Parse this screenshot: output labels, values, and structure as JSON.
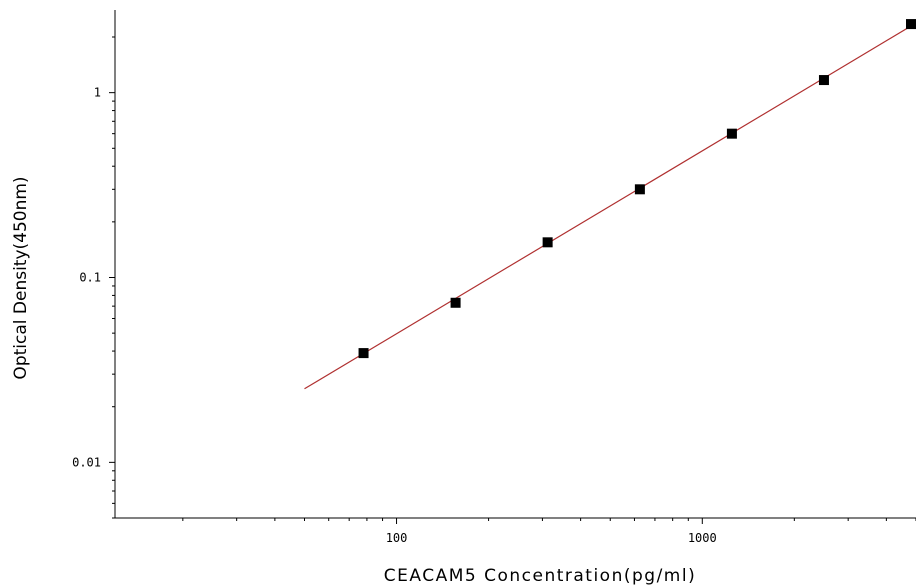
{
  "chart_data": {
    "type": "scatter",
    "xlabel": "CEACAM5 Concentration(pg/ml)",
    "ylabel": "Optical Density(450nm)",
    "x_scale": "log",
    "y_scale": "log",
    "xlim": [
      12,
      5000
    ],
    "ylim": [
      0.005,
      2.8
    ],
    "x_ticks": [
      {
        "value": 100,
        "label": "100"
      },
      {
        "value": 1000,
        "label": "1000"
      }
    ],
    "y_ticks": [
      {
        "value": 1,
        "label": "1"
      },
      {
        "value": 0.1,
        "label": "0.1"
      },
      {
        "value": 0.01,
        "label": "0.01"
      }
    ],
    "grid": false,
    "series": [
      {
        "marker": "square",
        "color": "#000000",
        "x": [
          78,
          156,
          312,
          625,
          1250,
          2500,
          5000
        ],
        "y": [
          0.039,
          0.073,
          0.155,
          0.3,
          0.6,
          1.17,
          2.35
        ]
      }
    ],
    "fit_line": {
      "color": "#b03030",
      "x": [
        50,
        5000
      ],
      "y": [
        0.025,
        2.38
      ]
    }
  }
}
